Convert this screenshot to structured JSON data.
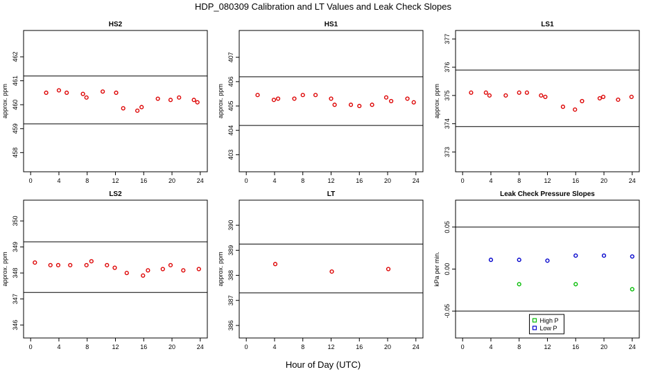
{
  "figure": {
    "title": "HDP_080309  Calibration and LT Values and Leak Check Slopes",
    "xlabel": "Hour of Day (UTC)"
  },
  "chart_data": [
    {
      "type": "scatter",
      "id": "hs2",
      "title": "HS2",
      "ylabel": "approx. ppm",
      "xlim": [
        -1,
        25
      ],
      "ylim": [
        457.2,
        463.1
      ],
      "xticks": [
        0,
        4,
        8,
        12,
        16,
        20,
        24
      ],
      "yticks": [
        458,
        459,
        460,
        461,
        462
      ],
      "hlines": [
        459.2,
        461.2
      ],
      "series": [
        {
          "name": "values",
          "color": "#dd0000",
          "marker": "circle",
          "x": [
            2.2,
            4.0,
            5.1,
            7.4,
            7.9,
            10.2,
            12.1,
            13.1,
            15.1,
            15.7,
            18.0,
            19.8,
            21.0,
            23.1,
            23.6
          ],
          "y": [
            460.5,
            460.6,
            460.5,
            460.45,
            460.3,
            460.55,
            460.5,
            459.85,
            459.75,
            459.9,
            460.25,
            460.2,
            460.3,
            460.2,
            460.1
          ]
        }
      ]
    },
    {
      "type": "scatter",
      "id": "hs1",
      "title": "HS1",
      "ylabel": "approx. ppm",
      "xlim": [
        -1,
        25
      ],
      "ylim": [
        402.3,
        408.1
      ],
      "xticks": [
        0,
        4,
        8,
        12,
        16,
        20,
        24
      ],
      "yticks": [
        403,
        404,
        405,
        406,
        407
      ],
      "hlines": [
        404.2,
        406.2
      ],
      "series": [
        {
          "name": "values",
          "color": "#dd0000",
          "marker": "circle",
          "x": [
            1.6,
            3.9,
            4.5,
            6.8,
            8.0,
            9.8,
            12.0,
            12.5,
            14.8,
            16.0,
            17.8,
            19.8,
            20.5,
            22.8,
            23.7
          ],
          "y": [
            405.45,
            405.25,
            405.3,
            405.3,
            405.45,
            405.45,
            405.3,
            405.05,
            405.05,
            405.0,
            405.05,
            405.35,
            405.2,
            405.3,
            405.15
          ]
        }
      ]
    },
    {
      "type": "scatter",
      "id": "ls1",
      "title": "LS1",
      "ylabel": "approx. ppm",
      "xlim": [
        -1,
        25
      ],
      "ylim": [
        372.3,
        377.3
      ],
      "xticks": [
        0,
        4,
        8,
        12,
        16,
        20,
        24
      ],
      "yticks": [
        373,
        374,
        375,
        376,
        377
      ],
      "hlines": [
        373.9,
        375.9
      ],
      "series": [
        {
          "name": "values",
          "color": "#dd0000",
          "marker": "circle",
          "x": [
            1.2,
            3.3,
            3.8,
            6.1,
            8.0,
            9.1,
            11.1,
            11.7,
            14.2,
            15.9,
            16.9,
            19.4,
            19.9,
            22.0,
            23.9
          ],
          "y": [
            375.1,
            375.1,
            375.0,
            375.0,
            375.1,
            375.1,
            375.0,
            374.95,
            374.6,
            374.5,
            374.8,
            374.9,
            374.95,
            374.85,
            374.95
          ]
        }
      ]
    },
    {
      "type": "scatter",
      "id": "ls2",
      "title": "LS2",
      "ylabel": "approx. ppm",
      "xlim": [
        -1,
        25
      ],
      "ylim": [
        345.5,
        350.8
      ],
      "xticks": [
        0,
        4,
        8,
        12,
        16,
        20,
        24
      ],
      "yticks": [
        346,
        347,
        348,
        349,
        350
      ],
      "hlines": [
        347.25,
        349.2
      ],
      "series": [
        {
          "name": "values",
          "color": "#dd0000",
          "marker": "circle",
          "x": [
            0.6,
            2.8,
            3.9,
            5.6,
            7.9,
            8.6,
            10.8,
            11.9,
            13.6,
            15.9,
            16.6,
            18.7,
            19.8,
            21.6,
            23.8
          ],
          "y": [
            348.4,
            348.3,
            348.3,
            348.3,
            348.3,
            348.45,
            348.3,
            348.2,
            348.0,
            347.9,
            348.1,
            348.15,
            348.3,
            348.1,
            348.15
          ]
        }
      ]
    },
    {
      "type": "scatter",
      "id": "lt",
      "title": "LT",
      "ylabel": "approx. ppm",
      "xlim": [
        -1,
        25
      ],
      "ylim": [
        385.5,
        391.0
      ],
      "xticks": [
        0,
        4,
        8,
        12,
        16,
        20,
        24
      ],
      "yticks": [
        386,
        387,
        388,
        389,
        390
      ],
      "hlines": [
        387.3,
        389.25
      ],
      "series": [
        {
          "name": "values",
          "color": "#dd0000",
          "marker": "circle",
          "x": [
            4.1,
            12.1,
            20.1
          ],
          "y": [
            388.45,
            388.15,
            388.25
          ]
        }
      ]
    },
    {
      "type": "scatter",
      "id": "leak",
      "title": "Leak Check Pressure Slopes",
      "ylabel": "kPa per min.",
      "xlim": [
        -1,
        25
      ],
      "ylim": [
        -0.082,
        0.082
      ],
      "xticks": [
        0,
        4,
        8,
        12,
        16,
        20,
        24
      ],
      "yticks": [
        -0.05,
        0.0,
        0.05
      ],
      "ytick_labels": [
        "-0.05",
        "0.00",
        "0.05"
      ],
      "hlines": [
        -0.05,
        0.05
      ],
      "legend": "bottom-center",
      "series": [
        {
          "name": "High P",
          "color": "#00bb00",
          "marker": "circle",
          "x": [
            8.0,
            16.0,
            24.0
          ],
          "y": [
            -0.018,
            -0.018,
            -0.024
          ]
        },
        {
          "name": "Low P",
          "color": "#0000cc",
          "marker": "circle",
          "x": [
            4.0,
            8.0,
            12.0,
            16.0,
            20.0,
            24.0
          ],
          "y": [
            0.011,
            0.011,
            0.01,
            0.016,
            0.016,
            0.015
          ]
        }
      ]
    }
  ]
}
